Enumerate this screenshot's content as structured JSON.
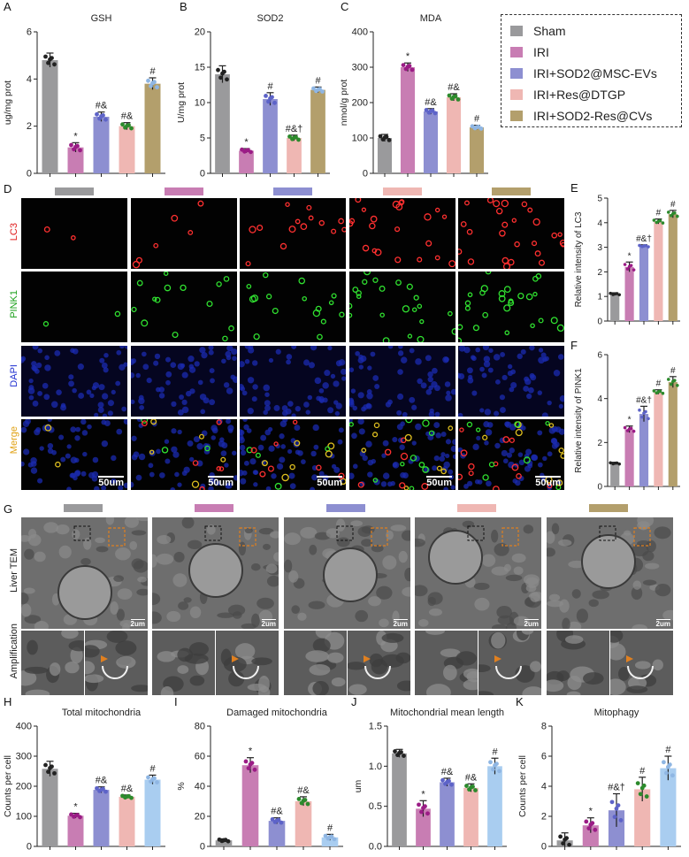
{
  "colors": {
    "sham": "#9a9a9c",
    "iri": "#c87db3",
    "sod2_msc": "#8d8fd1",
    "res_dtgp": "#efb7b3",
    "sod2_res_cvs": "#b39f6c",
    "k5": "#a9cdf0"
  },
  "legend": {
    "items": [
      {
        "label": "Sham",
        "color": "#9a9a9c"
      },
      {
        "label": "IRI",
        "color": "#c87db3"
      },
      {
        "label": "IRI+SOD2@MSC-EVs",
        "color": "#8d8fd1"
      },
      {
        "label": "IRI+Res@DTGP",
        "color": "#efb7b3"
      },
      {
        "label": "IRI+SOD2-Res@CVs",
        "color": "#b39f6c"
      }
    ]
  },
  "panel_labels": {
    "A": "A",
    "B": "B",
    "C": "C",
    "D": "D",
    "E": "E",
    "F": "F",
    "G": "G",
    "H": "H",
    "I": "I",
    "J": "J",
    "K": "K"
  },
  "panel_d": {
    "row_labels": [
      "LC3",
      "PINK1",
      "DAPI",
      "Merge"
    ],
    "row_label_colors": [
      "#e02020",
      "#1aa01a",
      "#2030d0",
      "#e0a010"
    ],
    "scale_label": "50um"
  },
  "panel_g": {
    "row_labels": [
      "Liver TEM",
      "Amplification"
    ],
    "scale_label": "2um"
  },
  "chart_data": [
    {
      "id": "A",
      "type": "bar",
      "title": "GSH",
      "ylabel": "ug/mg prot",
      "ylim": [
        0,
        6
      ],
      "yticks": [
        0,
        2,
        4,
        6
      ],
      "values": [
        4.8,
        1.1,
        2.4,
        2.0,
        3.8
      ],
      "errors": [
        0.3,
        0.2,
        0.2,
        0.15,
        0.25
      ],
      "labels": [
        "",
        "*",
        "#&",
        "#&",
        "#"
      ],
      "colors": [
        "#9a9a9c",
        "#c87db3",
        "#8d8fd1",
        "#efb7b3",
        "#b39f6c"
      ],
      "dot_colors": [
        "#222222",
        "#9b1c86",
        "#5d63c8",
        "#2c8a2c",
        "#8fb6e3"
      ]
    },
    {
      "id": "B",
      "type": "bar",
      "title": "SOD2",
      "ylabel": "U/mg prot",
      "ylim": [
        0,
        20
      ],
      "yticks": [
        0,
        5,
        10,
        15,
        20
      ],
      "values": [
        14.0,
        3.2,
        10.5,
        5.0,
        11.8
      ],
      "errors": [
        1.2,
        0.3,
        0.9,
        0.4,
        0.4
      ],
      "labels": [
        "",
        "*",
        "#",
        "#&†",
        "#"
      ],
      "colors": [
        "#9a9a9c",
        "#c87db3",
        "#8d8fd1",
        "#efb7b3",
        "#b39f6c"
      ],
      "dot_colors": [
        "#222222",
        "#9b1c86",
        "#5d63c8",
        "#2c8a2c",
        "#8fb6e3"
      ]
    },
    {
      "id": "C",
      "type": "bar",
      "title": "MDA",
      "ylabel": "nmol/g prot",
      "ylim": [
        0,
        400
      ],
      "yticks": [
        0,
        100,
        200,
        300,
        400
      ],
      "values": [
        100,
        300,
        175,
        215,
        130
      ],
      "errors": [
        10,
        12,
        8,
        10,
        6
      ],
      "labels": [
        "",
        "*",
        "#&",
        "#&",
        "#"
      ],
      "colors": [
        "#9a9a9c",
        "#c87db3",
        "#8d8fd1",
        "#efb7b3",
        "#b39f6c"
      ],
      "dot_colors": [
        "#222222",
        "#9b1c86",
        "#5d63c8",
        "#2c8a2c",
        "#8fb6e3"
      ]
    },
    {
      "id": "E",
      "type": "bar",
      "title": "",
      "ylabel": "Relative intensity of LC3",
      "ylim": [
        0,
        5
      ],
      "yticks": [
        0,
        1,
        2,
        3,
        4,
        5
      ],
      "values": [
        1.1,
        2.2,
        3.05,
        4.05,
        4.35
      ],
      "errors": [
        0.05,
        0.2,
        0.05,
        0.1,
        0.15
      ],
      "labels": [
        "",
        "*",
        "#&†",
        "#",
        "#"
      ],
      "colors": [
        "#9a9a9c",
        "#c87db3",
        "#8d8fd1",
        "#efb7b3",
        "#b39f6c"
      ],
      "dot_colors": [
        "#222222",
        "#9b1c86",
        "#5d63c8",
        "#2c8a2c",
        "#2c8a2c"
      ]
    },
    {
      "id": "F",
      "type": "bar",
      "title": "",
      "ylabel": "Relative intensity of PINK1",
      "ylim": [
        0,
        6
      ],
      "yticks": [
        0,
        2,
        4,
        6
      ],
      "values": [
        1.05,
        2.6,
        3.3,
        4.3,
        4.75
      ],
      "errors": [
        0.05,
        0.15,
        0.35,
        0.1,
        0.25
      ],
      "labels": [
        "",
        "*",
        "#&†",
        "#",
        "#"
      ],
      "colors": [
        "#9a9a9c",
        "#c87db3",
        "#8d8fd1",
        "#efb7b3",
        "#b39f6c"
      ],
      "dot_colors": [
        "#222222",
        "#9b1c86",
        "#5d63c8",
        "#2c8a2c",
        "#2c8a2c"
      ]
    },
    {
      "id": "H",
      "type": "bar",
      "title": "Total mitochondria",
      "ylabel": "Counts per cell",
      "ylim": [
        0,
        400
      ],
      "yticks": [
        0,
        100,
        200,
        300,
        400
      ],
      "values": [
        258,
        102,
        188,
        165,
        222
      ],
      "errors": [
        25,
        8,
        10,
        6,
        15
      ],
      "labels": [
        "",
        "*",
        "#&",
        "#&",
        "#"
      ],
      "colors": [
        "#9a9a9c",
        "#c87db3",
        "#8d8fd1",
        "#efb7b3",
        "#a9cdf0"
      ],
      "dot_colors": [
        "#222222",
        "#9b1c86",
        "#5d63c8",
        "#2c8a2c",
        "#8fb6e3"
      ]
    },
    {
      "id": "I",
      "type": "bar",
      "title": "Damaged mitochondria",
      "ylabel": "%",
      "ylim": [
        0,
        80
      ],
      "yticks": [
        0,
        20,
        40,
        60,
        80
      ],
      "values": [
        4,
        54,
        17,
        30,
        6
      ],
      "errors": [
        1,
        5,
        2,
        3,
        2
      ],
      "labels": [
        "",
        "*",
        "#&",
        "#&",
        "#"
      ],
      "colors": [
        "#9a9a9c",
        "#c87db3",
        "#8d8fd1",
        "#efb7b3",
        "#a9cdf0"
      ],
      "dot_colors": [
        "#222222",
        "#9b1c86",
        "#5d63c8",
        "#2c8a2c",
        "#8fb6e3"
      ]
    },
    {
      "id": "J",
      "type": "bar",
      "title": "Mitochondrial mean length",
      "ylabel": "um",
      "ylim": [
        0,
        1.5
      ],
      "yticks": [
        0.0,
        0.5,
        1.0,
        1.5
      ],
      "values": [
        1.16,
        0.47,
        0.8,
        0.73,
        1.0
      ],
      "errors": [
        0.05,
        0.1,
        0.05,
        0.05,
        0.1
      ],
      "labels": [
        "",
        "*",
        "#&",
        "#&",
        "#"
      ],
      "colors": [
        "#9a9a9c",
        "#c87db3",
        "#8d8fd1",
        "#efb7b3",
        "#a9cdf0"
      ],
      "dot_colors": [
        "#222222",
        "#9b1c86",
        "#5d63c8",
        "#2c8a2c",
        "#8fb6e3"
      ]
    },
    {
      "id": "K",
      "type": "bar",
      "title": "Mitophagy",
      "ylabel": "Counts per cell",
      "ylim": [
        0,
        8
      ],
      "yticks": [
        0,
        2,
        4,
        6,
        8
      ],
      "values": [
        0.4,
        1.4,
        2.4,
        3.8,
        5.2
      ],
      "errors": [
        0.5,
        0.5,
        1.1,
        0.8,
        0.8
      ],
      "labels": [
        "",
        "*",
        "#&†",
        "#",
        "#"
      ],
      "colors": [
        "#9a9a9c",
        "#c87db3",
        "#8d8fd1",
        "#efb7b3",
        "#a9cdf0"
      ],
      "dot_colors": [
        "#222222",
        "#9b1c86",
        "#5d63c8",
        "#2c8a2c",
        "#8fb6e3"
      ]
    }
  ]
}
